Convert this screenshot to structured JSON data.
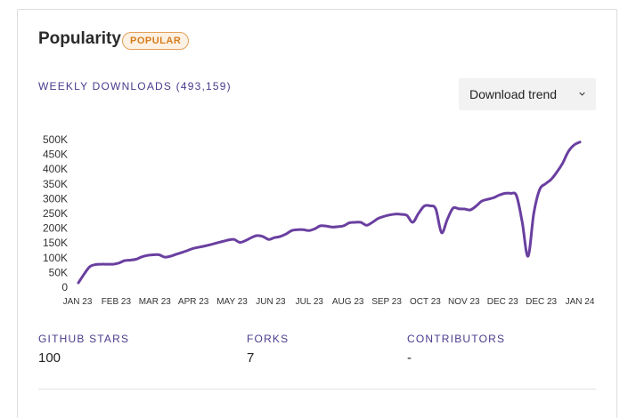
{
  "popularity": {
    "title": "Popularity",
    "badge": "POPULAR",
    "weekly_downloads_label": "WEEKLY DOWNLOADS (493,159)",
    "trend_select": "Download trend"
  },
  "colors": {
    "line": "#6a3fa0",
    "accent": "#4b3a8c",
    "badge_border": "#e4a15b",
    "badge_text": "#d77d1c"
  },
  "chart_data": {
    "type": "line",
    "title": "",
    "xlabel": "",
    "ylabel": "",
    "ylim": [
      0,
      500000
    ],
    "y_ticks": [
      0,
      50000,
      100000,
      150000,
      200000,
      250000,
      300000,
      350000,
      400000,
      450000,
      500000
    ],
    "y_tick_labels": [
      "0",
      "50K",
      "100K",
      "150K",
      "200K",
      "250K",
      "300K",
      "350K",
      "400K",
      "450K",
      "500K"
    ],
    "x_tick_labels": [
      "JAN 23",
      "FEB 23",
      "MAR 23",
      "APR 23",
      "MAY 23",
      "JUN 23",
      "JUL 23",
      "AUG 23",
      "SEP 23",
      "OCT 23",
      "NOV 23",
      "DEC 23",
      "DEC 23",
      "JAN 24"
    ],
    "grid": false,
    "series": [
      {
        "values": [
          15000,
          45000,
          70000,
          77000,
          78000,
          78000,
          78000,
          82000,
          90000,
          92000,
          95000,
          103000,
          108000,
          110000,
          110000,
          102000,
          105000,
          112000,
          118000,
          125000,
          132000,
          136000,
          140000,
          145000,
          150000,
          155000,
          160000,
          162000,
          152000,
          158000,
          168000,
          175000,
          172000,
          162000,
          168000,
          172000,
          180000,
          192000,
          195000,
          195000,
          192000,
          198000,
          208000,
          207000,
          204000,
          205000,
          208000,
          218000,
          220000,
          220000,
          210000,
          220000,
          233000,
          240000,
          245000,
          248000,
          247000,
          243000,
          220000,
          250000,
          275000,
          276000,
          265000,
          185000,
          230000,
          268000,
          266000,
          265000,
          262000,
          275000,
          292000,
          298000,
          303000,
          312000,
          318000,
          318000,
          310000,
          220000,
          105000,
          250000,
          330000,
          350000,
          365000,
          390000,
          420000,
          460000,
          482000,
          492000
        ]
      }
    ]
  },
  "stats": [
    {
      "label": "GITHUB STARS",
      "value": "100"
    },
    {
      "label": "FORKS",
      "value": "7"
    },
    {
      "label": "CONTRIBUTORS",
      "value": "-"
    }
  ]
}
